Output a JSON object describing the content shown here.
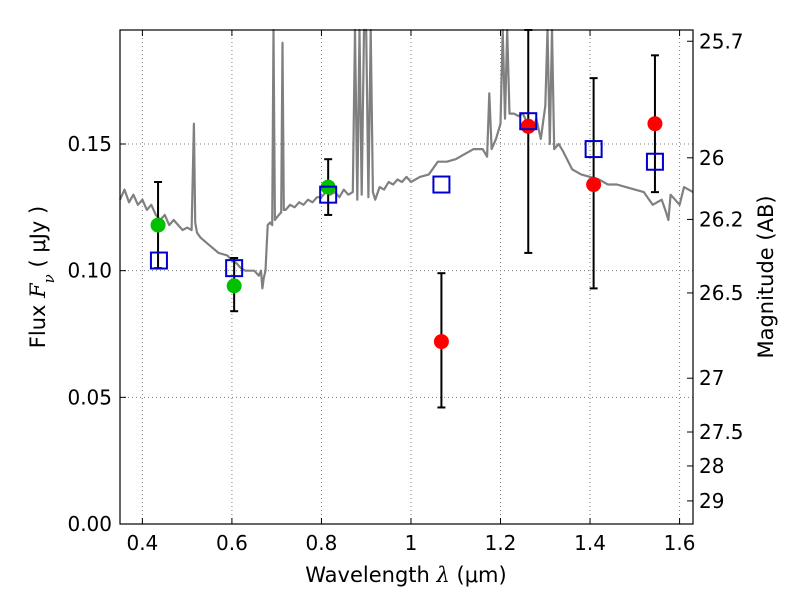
{
  "chart_data": {
    "type": "scatter",
    "xlabel": {
      "prefix": "Wavelength  ",
      "lambda": "λ",
      "unit": " (μm)"
    },
    "ylabel": {
      "prefix": "Flux  ",
      "symbol": "F",
      "subscript": "ν",
      "unit": "  ( μJy )"
    },
    "y2label": "Magnitude (AB)",
    "xlim": [
      0.35,
      1.63
    ],
    "ylim": [
      0.0,
      0.195
    ],
    "grid": true,
    "x_ticks": [
      {
        "value": 0.4,
        "label": "0.4"
      },
      {
        "value": 0.6,
        "label": "0.6"
      },
      {
        "value": 0.8,
        "label": "0.8"
      },
      {
        "value": 1.0,
        "label": "1"
      },
      {
        "value": 1.2,
        "label": "1.2"
      },
      {
        "value": 1.4,
        "label": "1.4"
      },
      {
        "value": 1.6,
        "label": "1.6"
      }
    ],
    "y_ticks": [
      {
        "value": 0.0,
        "label": "0.00"
      },
      {
        "value": 0.05,
        "label": "0.05"
      },
      {
        "value": 0.1,
        "label": "0.10"
      },
      {
        "value": 0.15,
        "label": "0.15"
      }
    ],
    "y2_ticks": [
      {
        "mag": 25.7,
        "label": "25.7"
      },
      {
        "mag": 26.0,
        "label": "26"
      },
      {
        "mag": 26.2,
        "label": "26.2"
      },
      {
        "mag": 26.5,
        "label": "26.5"
      },
      {
        "mag": 27.0,
        "label": "27"
      },
      {
        "mag": 27.5,
        "label": "27.5"
      },
      {
        "mag": 28.0,
        "label": "28"
      },
      {
        "mag": 29.0,
        "label": "29"
      }
    ],
    "colors": {
      "model": "#808080",
      "detection": "#00c000",
      "measurement": "#ff0000",
      "model_flux": "#0000cc",
      "errorbar": "#000000",
      "grid": "#7f7f7f"
    },
    "observed": [
      {
        "x": 0.435,
        "y": 0.118,
        "yerr_low": 0.101,
        "yerr_high": 0.135,
        "color": "detection"
      },
      {
        "x": 0.605,
        "y": 0.094,
        "yerr_low": 0.084,
        "yerr_high": 0.105,
        "color": "detection"
      },
      {
        "x": 0.815,
        "y": 0.133,
        "yerr_low": 0.122,
        "yerr_high": 0.144,
        "color": "detection"
      },
      {
        "x": 1.068,
        "y": 0.072,
        "yerr_low": 0.046,
        "yerr_high": 0.099,
        "color": "measurement"
      },
      {
        "x": 1.262,
        "y": 0.157,
        "yerr_low": 0.107,
        "yerr_high": 0.195,
        "color": "measurement"
      },
      {
        "x": 1.408,
        "y": 0.134,
        "yerr_low": 0.093,
        "yerr_high": 0.176,
        "color": "measurement"
      },
      {
        "x": 1.545,
        "y": 0.158,
        "yerr_low": 0.131,
        "yerr_high": 0.185,
        "color": "measurement"
      }
    ],
    "model_points": [
      {
        "x": 0.437,
        "y": 0.104
      },
      {
        "x": 0.605,
        "y": 0.101
      },
      {
        "x": 0.815,
        "y": 0.13
      },
      {
        "x": 1.068,
        "y": 0.134
      },
      {
        "x": 1.262,
        "y": 0.159
      },
      {
        "x": 1.408,
        "y": 0.148
      },
      {
        "x": 1.545,
        "y": 0.143
      }
    ],
    "model_spectrum": {
      "x": [
        0.35,
        0.36,
        0.37,
        0.38,
        0.39,
        0.4,
        0.41,
        0.42,
        0.43,
        0.44,
        0.45,
        0.46,
        0.47,
        0.48,
        0.49,
        0.5,
        0.51,
        0.515,
        0.518,
        0.522,
        0.53,
        0.55,
        0.57,
        0.59,
        0.6,
        0.61,
        0.62,
        0.63,
        0.64,
        0.65,
        0.66,
        0.665,
        0.668,
        0.671,
        0.675,
        0.68,
        0.685,
        0.69,
        0.693,
        0.696,
        0.7,
        0.705,
        0.71,
        0.713,
        0.716,
        0.72,
        0.73,
        0.74,
        0.75,
        0.76,
        0.77,
        0.78,
        0.79,
        0.8,
        0.81,
        0.82,
        0.83,
        0.84,
        0.85,
        0.86,
        0.87,
        0.875,
        0.88,
        0.885,
        0.89,
        0.895,
        0.9,
        0.905,
        0.91,
        0.915,
        0.92,
        0.93,
        0.94,
        0.95,
        0.96,
        0.97,
        0.98,
        0.99,
        1.0,
        1.02,
        1.04,
        1.06,
        1.08,
        1.1,
        1.12,
        1.14,
        1.16,
        1.17,
        1.175,
        1.18,
        1.19,
        1.2,
        1.205,
        1.21,
        1.215,
        1.22,
        1.23,
        1.24,
        1.25,
        1.26,
        1.27,
        1.28,
        1.29,
        1.3,
        1.305,
        1.31,
        1.315,
        1.32,
        1.33,
        1.34,
        1.36,
        1.38,
        1.4,
        1.42,
        1.44,
        1.46,
        1.48,
        1.5,
        1.52,
        1.54,
        1.56,
        1.57,
        1.575,
        1.58,
        1.59,
        1.6,
        1.61,
        1.62,
        1.63
      ],
      "y": [
        0.128,
        0.132,
        0.127,
        0.13,
        0.126,
        0.128,
        0.124,
        0.126,
        0.122,
        0.12,
        0.122,
        0.118,
        0.12,
        0.118,
        0.116,
        0.117,
        0.116,
        0.158,
        0.119,
        0.115,
        0.113,
        0.11,
        0.107,
        0.106,
        0.104,
        0.103,
        0.101,
        0.1,
        0.1,
        0.1,
        0.098,
        0.1,
        0.093,
        0.097,
        0.1,
        0.118,
        0.119,
        0.118,
        0.195,
        0.12,
        0.121,
        0.122,
        0.123,
        0.19,
        0.124,
        0.124,
        0.126,
        0.125,
        0.127,
        0.126,
        0.128,
        0.127,
        0.129,
        0.129,
        0.131,
        0.13,
        0.131,
        0.129,
        0.132,
        0.13,
        0.131,
        0.195,
        0.128,
        0.195,
        0.13,
        0.195,
        0.195,
        0.129,
        0.195,
        0.131,
        0.128,
        0.133,
        0.132,
        0.135,
        0.134,
        0.136,
        0.135,
        0.137,
        0.135,
        0.137,
        0.138,
        0.143,
        0.143,
        0.144,
        0.146,
        0.148,
        0.148,
        0.145,
        0.17,
        0.148,
        0.152,
        0.158,
        0.195,
        0.16,
        0.195,
        0.162,
        0.162,
        0.161,
        0.162,
        0.158,
        0.155,
        0.16,
        0.152,
        0.165,
        0.195,
        0.15,
        0.195,
        0.148,
        0.15,
        0.147,
        0.14,
        0.138,
        0.137,
        0.136,
        0.134,
        0.134,
        0.133,
        0.132,
        0.131,
        0.126,
        0.128,
        0.123,
        0.12,
        0.13,
        0.128,
        0.126,
        0.133,
        0.132,
        0.131
      ]
    }
  }
}
